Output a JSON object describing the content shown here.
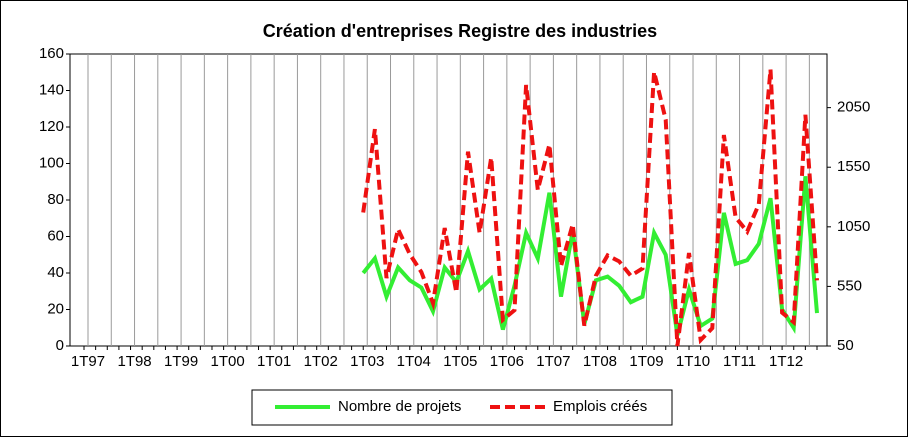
{
  "chart_data": {
    "type": "line",
    "title": "Création d'entreprises Registre des industries",
    "categories": [
      "1T97",
      null,
      null,
      null,
      "1T98",
      null,
      null,
      null,
      "1T99",
      null,
      null,
      null,
      "1T00",
      null,
      null,
      null,
      "1T01",
      null,
      null,
      null,
      "1T02",
      null,
      null,
      null,
      "1T03",
      null,
      null,
      null,
      "1T04",
      null,
      null,
      null,
      "1T05",
      null,
      null,
      null,
      "1T06",
      null,
      null,
      null,
      "1T07",
      null,
      null,
      null,
      "1T08",
      null,
      null,
      null,
      "1T09",
      null,
      null,
      null,
      "1T10",
      null,
      null,
      null,
      "1T11",
      null,
      null,
      null,
      "1T12",
      null,
      null,
      null
    ],
    "series": [
      {
        "name": "Nombre de projets",
        "color": "#33ee33",
        "dash": false,
        "values": [
          null,
          null,
          null,
          null,
          null,
          null,
          null,
          null,
          null,
          null,
          null,
          null,
          null,
          null,
          null,
          null,
          null,
          null,
          null,
          null,
          null,
          null,
          null,
          null,
          40,
          48,
          27,
          43,
          36,
          32,
          19,
          43,
          35,
          52,
          31,
          37,
          9,
          33,
          62,
          48,
          84,
          27,
          63,
          12,
          36,
          38,
          33,
          24,
          27,
          62,
          50,
          6,
          31,
          11,
          15,
          73,
          45,
          47,
          56,
          81,
          20,
          10,
          93,
          18
        ]
      },
      {
        "name": "Emplois créés",
        "color": "#ee1111",
        "dash": true,
        "axis": "y2",
        "values": [
          null,
          null,
          null,
          null,
          null,
          null,
          null,
          null,
          null,
          null,
          null,
          null,
          null,
          null,
          null,
          null,
          null,
          null,
          null,
          null,
          null,
          null,
          null,
          null,
          1170,
          1870,
          620,
          1030,
          820,
          670,
          410,
          1040,
          500,
          1680,
          1000,
          1630,
          270,
          350,
          2240,
          1360,
          1740,
          720,
          1070,
          220,
          640,
          810,
          760,
          640,
          700,
          2350,
          1950,
          50,
          830,
          100,
          200,
          1820,
          1130,
          1010,
          1240,
          2370,
          330,
          250,
          1990,
          600
        ]
      }
    ],
    "ylim": [
      0,
      160
    ],
    "yticks": [
      0,
      20,
      40,
      60,
      80,
      100,
      120,
      140,
      160
    ],
    "y2lim": [
      50,
      2500
    ],
    "y2ticks": [
      50,
      550,
      1050,
      1550,
      2050
    ],
    "xgrid": true,
    "legend": "bottom"
  }
}
